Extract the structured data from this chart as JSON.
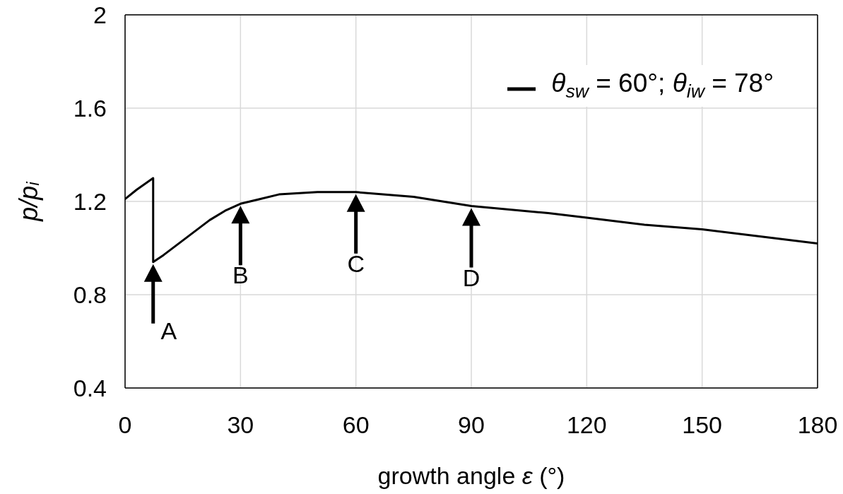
{
  "chart_data": {
    "type": "line",
    "xlabel": "growth angle ε (°)",
    "ylabel": "p/p$_{i}$",
    "x": [
      0,
      3,
      7.3,
      7.3,
      10,
      14,
      18,
      22,
      26,
      30,
      35,
      40,
      50,
      60,
      75,
      90,
      110,
      120,
      135,
      150,
      165,
      180
    ],
    "series": [
      {
        "name": "θ$_{sw}$ = 60°; θ$_{iw}$ = 78°",
        "color": "#000000",
        "values": [
          1.21,
          1.25,
          1.3,
          0.94,
          0.97,
          1.02,
          1.07,
          1.12,
          1.16,
          1.19,
          1.21,
          1.23,
          1.24,
          1.24,
          1.22,
          1.18,
          1.15,
          1.13,
          1.1,
          1.08,
          1.05,
          1.02
        ]
      }
    ],
    "xlim": [
      0,
      180
    ],
    "xticks": [
      0,
      30,
      60,
      90,
      120,
      150,
      180
    ],
    "ylim": [
      0.4,
      2
    ],
    "yticks": [
      0.4,
      0.8,
      1.2,
      1.6,
      2
    ],
    "grid": true,
    "legend": "top right",
    "annotations": [
      {
        "text": "A",
        "x": 7.3,
        "y": 0.94
      },
      {
        "text": "B",
        "x": 30,
        "y": 1.19
      },
      {
        "text": "C",
        "x": 60,
        "y": 1.24
      },
      {
        "text": "D",
        "x": 90,
        "y": 1.18
      }
    ]
  }
}
